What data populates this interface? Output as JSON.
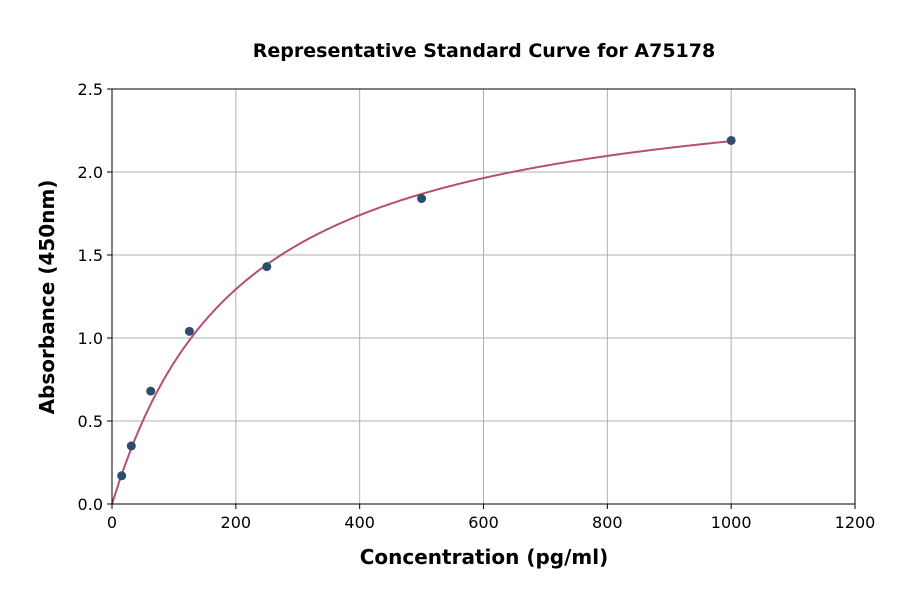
{
  "chart_data": {
    "type": "scatter",
    "title": "Representative Standard Curve for A75178",
    "xlabel": "Concentration (pg/ml)",
    "ylabel": "Absorbance (450nm)",
    "xlim": [
      0,
      1200
    ],
    "ylim": [
      0,
      2.5
    ],
    "xticks": [
      0,
      200,
      400,
      600,
      800,
      1000,
      1200
    ],
    "yticks": [
      0.0,
      0.5,
      1.0,
      1.5,
      2.0,
      2.5
    ],
    "xtick_labels": [
      "0",
      "200",
      "400",
      "600",
      "800",
      "1000",
      "1200"
    ],
    "ytick_labels": [
      "0.0",
      "0.5",
      "1.0",
      "1.5",
      "2.0",
      "2.5"
    ],
    "grid": true,
    "points": {
      "x": [
        15.6,
        31.25,
        62.5,
        125,
        250,
        500,
        1000
      ],
      "y": [
        0.17,
        0.35,
        0.68,
        1.04,
        1.43,
        1.84,
        2.19
      ]
    },
    "fit_curve": {
      "type": "smooth fitted curve through the standards"
    },
    "colors": {
      "points": "#2f4b6e",
      "curve": "#b5506f",
      "grid": "#b0b0b0"
    }
  }
}
